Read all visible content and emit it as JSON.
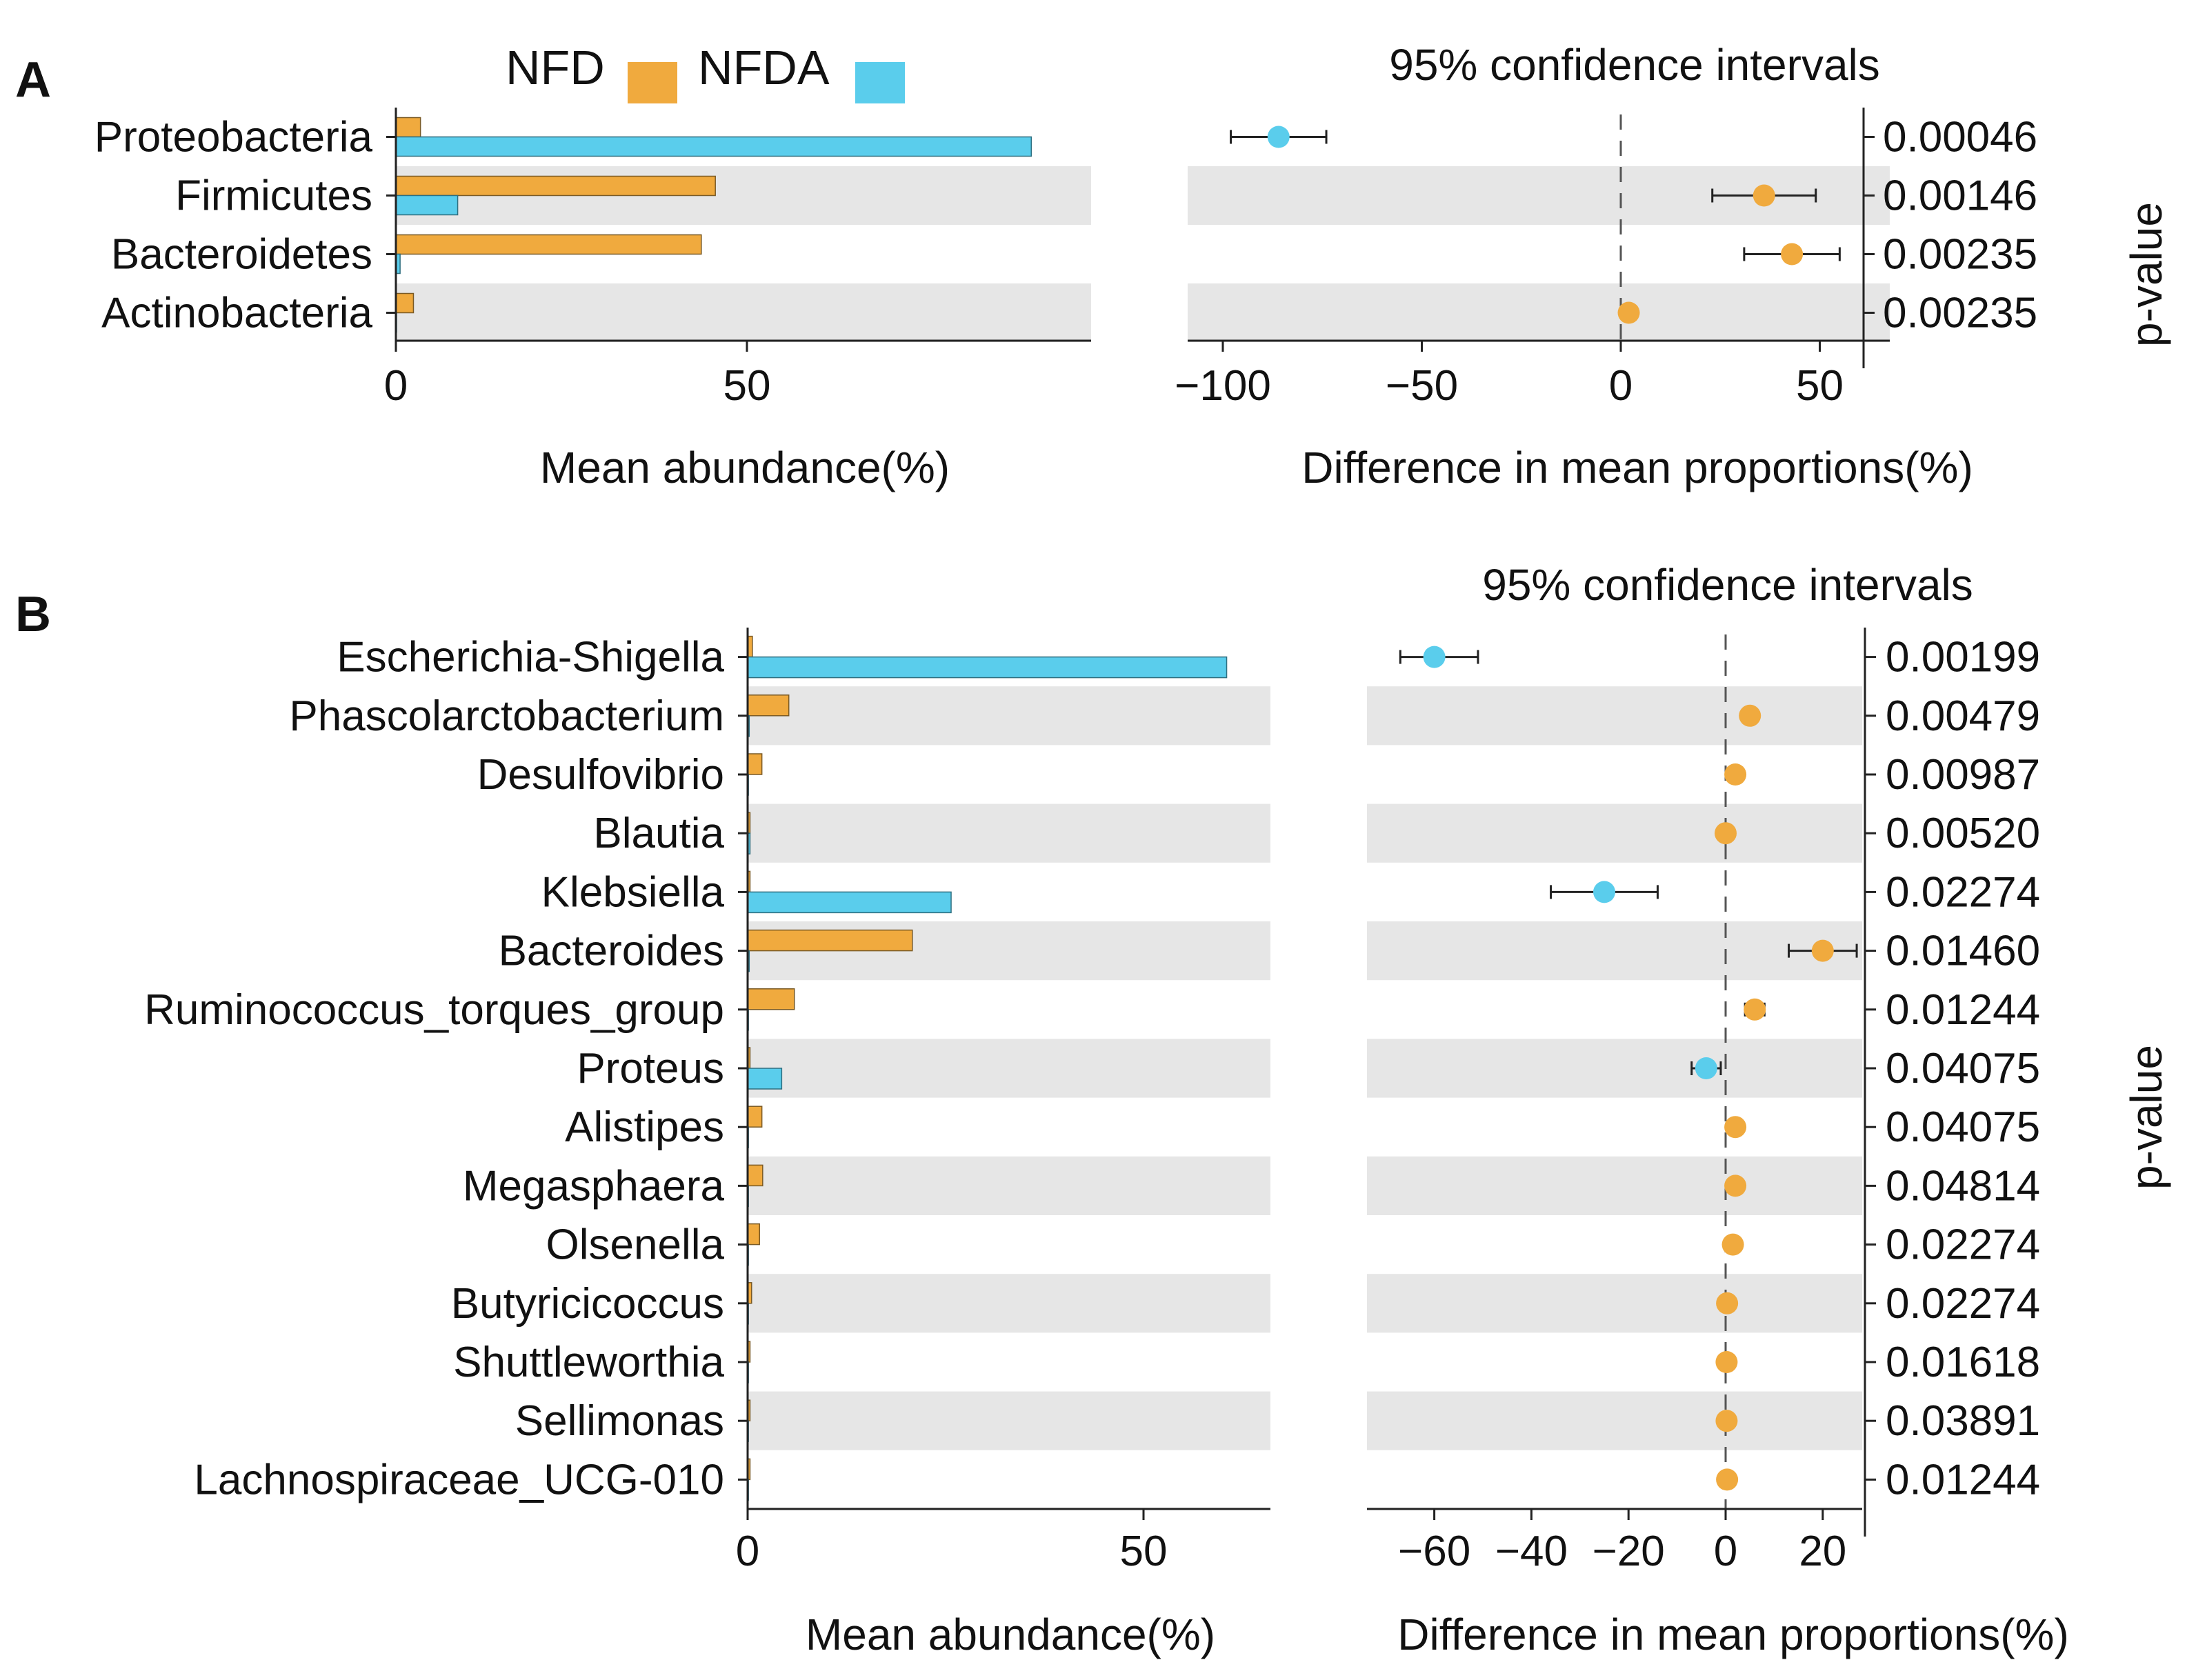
{
  "colors": {
    "nfd": "#F0AA3E",
    "nfda": "#5ACDEC",
    "band": "#E6E6E6",
    "axis": "#222222"
  },
  "chart_data": [
    {
      "panel": "A",
      "type": "bar",
      "legend": [
        {
          "name": "NFD",
          "color": "#F0AA3E"
        },
        {
          "name": "NFDA",
          "color": "#5ACDEC"
        }
      ],
      "categories": [
        "Proteobacteria",
        "Firmicutes",
        "Bacteroidetes",
        "Actinobacteria"
      ],
      "series": [
        {
          "name": "NFD",
          "values": [
            3.5,
            45.5,
            43.5,
            2.5
          ]
        },
        {
          "name": "NFDA",
          "values": [
            90.5,
            8.8,
            0.6,
            0.1
          ]
        }
      ],
      "xlabel": "Mean abundance(%)",
      "xlim": [
        0,
        100
      ],
      "xticks": [
        0,
        50
      ],
      "ci_title": "95% confidence intervals",
      "ci": {
        "diff": [
          -86,
          36,
          43,
          2
        ],
        "lower": [
          -98,
          23,
          31,
          1
        ],
        "upper": [
          -74,
          49,
          55,
          3
        ],
        "higher_group": [
          "NFDA",
          "NFD",
          "NFD",
          "NFD"
        ],
        "xlim": [
          -108,
          65
        ],
        "xticks": [
          -100,
          -50,
          0,
          50
        ],
        "xlabel": "Difference in mean proportions(%)"
      },
      "pvalues": [
        "0.00046",
        "0.00146",
        "0.00235",
        "0.00235"
      ],
      "pvalue_label": "p-value"
    },
    {
      "panel": "B",
      "type": "bar",
      "categories": [
        "Escherichia-Shigella",
        "Phascolarctobacterium",
        "Desulfovibrio",
        "Blautia",
        "Klebsiella",
        "Bacteroides",
        "Ruminococcus_torques_group",
        "Proteus",
        "Alistipes",
        "Megasphaera",
        "Olsenella",
        "Butyricicoccus",
        "Shuttleworthia",
        "Sellimonas",
        "Lachnospiraceae_UCG-010"
      ],
      "series": [
        {
          "name": "NFD",
          "values": [
            0.6,
            5.2,
            1.8,
            0.3,
            0.3,
            20.8,
            5.9,
            0.3,
            1.8,
            1.9,
            1.5,
            0.5,
            0.3,
            0.3,
            0.3
          ]
        },
        {
          "name": "NFDA",
          "values": [
            60.5,
            0.2,
            0.1,
            0.3,
            25.7,
            0.2,
            0.1,
            4.3,
            0.1,
            0.1,
            0.1,
            0.1,
            0.1,
            0.1,
            0.1
          ]
        }
      ],
      "xlabel": "Mean abundance(%)",
      "xlim": [
        0,
        67
      ],
      "xticks": [
        0,
        50
      ],
      "ci_title": "95% confidence intervals",
      "ci": {
        "diff": [
          -60,
          5,
          2,
          0,
          -25,
          20,
          6,
          -4,
          2,
          2,
          1.5,
          0.3,
          0.2,
          0.2,
          0.3
        ],
        "lower": [
          -67,
          3.5,
          1,
          -0.6,
          -36,
          13,
          4,
          -7,
          1,
          1,
          0.7,
          -0.3,
          -0.3,
          -0.3,
          -0.2
        ],
        "upper": [
          -51,
          6.5,
          3,
          0.6,
          -14,
          27,
          8,
          -1,
          3,
          3,
          2.3,
          0.9,
          0.7,
          0.7,
          0.8
        ],
        "higher_group": [
          "NFDA",
          "NFD",
          "NFD",
          "NFD",
          "NFDA",
          "NFD",
          "NFD",
          "NFDA",
          "NFD",
          "NFD",
          "NFD",
          "NFD",
          "NFD",
          "NFD",
          "NFD"
        ],
        "xlim": [
          -74,
          28
        ],
        "xticks": [
          -60,
          -40,
          -20,
          0,
          20
        ],
        "xlabel": "Difference in mean proportions(%)"
      },
      "pvalues": [
        "0.00199",
        "0.00479",
        "0.00987",
        "0.00520",
        "0.02274",
        "0.01460",
        "0.01244",
        "0.04075",
        "0.04075",
        "0.04814",
        "0.02274",
        "0.02274",
        "0.01618",
        "0.03891",
        "0.01244"
      ],
      "pvalue_label": "p-value"
    }
  ]
}
